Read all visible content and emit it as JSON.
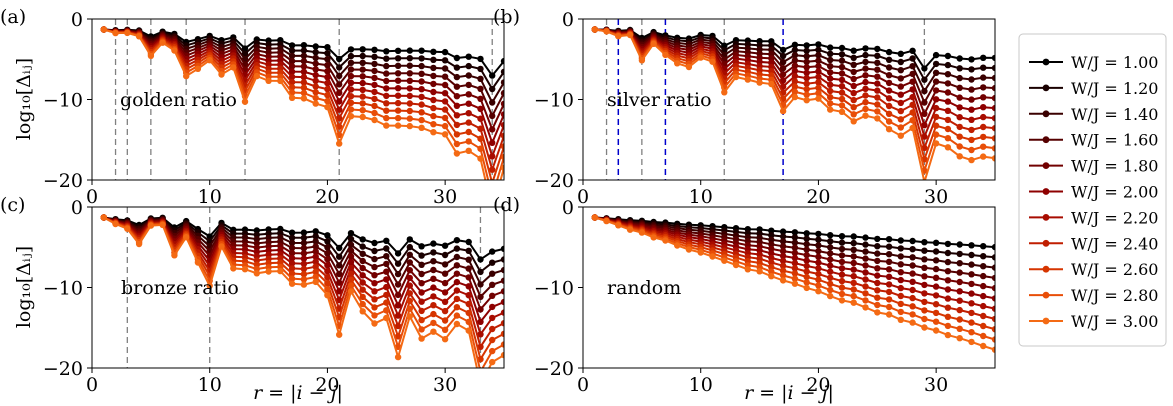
{
  "figure": {
    "xlabel": "r = |i − j|",
    "ylabel": "log₁₀[Δᵢⱼ]"
  },
  "legend": {
    "entries": [
      "W/J = 1.00",
      "W/J = 1.20",
      "W/J = 1.40",
      "W/J = 1.60",
      "W/J = 1.80",
      "W/J = 2.00",
      "W/J = 2.20",
      "W/J = 2.40",
      "W/J = 2.60",
      "W/J = 2.80",
      "W/J = 3.00"
    ],
    "placement": "right"
  },
  "chart_data": [
    {
      "type": "line",
      "panel_label": "(a)",
      "annotation": "golden ratio",
      "xlim": [
        0,
        35
      ],
      "ylim": [
        -20,
        0
      ],
      "xticks": [
        0,
        10,
        20,
        30
      ],
      "yticks": [
        0,
        -10,
        -20
      ],
      "vlines_gray": [
        2,
        3,
        5,
        8,
        13,
        21,
        34
      ],
      "vlines_blue": [],
      "dips": [
        {
          "r": 5,
          "depth": 0.6
        },
        {
          "r": 8,
          "depth": 1.2
        },
        {
          "r": 13,
          "depth": 1.8
        },
        {
          "r": 21,
          "depth": 2.6
        },
        {
          "r": 34,
          "depth": 3.2
        }
      ],
      "jitter": 0.6,
      "seed": 3
    },
    {
      "type": "line",
      "panel_label": "(b)",
      "annotation": "silver ratio",
      "xlim": [
        0,
        35
      ],
      "ylim": [
        -20,
        0
      ],
      "xticks": [
        0,
        10,
        20,
        30
      ],
      "yticks": [
        0,
        -10,
        -20
      ],
      "vlines_gray": [
        2,
        5,
        12,
        29
      ],
      "vlines_blue": [
        3,
        7,
        17
      ],
      "dips": [
        {
          "r": 5,
          "depth": 0.6
        },
        {
          "r": 12,
          "depth": 1.4
        },
        {
          "r": 17,
          "depth": 1.6
        },
        {
          "r": 29,
          "depth": 2.6
        }
      ],
      "jitter": 0.5,
      "seed": 7
    },
    {
      "type": "line",
      "panel_label": "(c)",
      "annotation": "bronze ratio",
      "xlim": [
        0,
        35
      ],
      "ylim": [
        -20,
        0
      ],
      "xticks": [
        0,
        10,
        20,
        30
      ],
      "yticks": [
        0,
        -10,
        -20
      ],
      "vlines_gray": [
        3,
        10,
        33
      ],
      "vlines_blue": [],
      "dips": [
        {
          "r": 10,
          "depth": 1.6
        },
        {
          "r": 21,
          "depth": 1.8
        },
        {
          "r": 23,
          "depth": 1.2
        },
        {
          "r": 26,
          "depth": 2.0
        },
        {
          "r": 30,
          "depth": 1.6
        },
        {
          "r": 33,
          "depth": 4.0
        }
      ],
      "jitter": 1.2,
      "seed": 11
    },
    {
      "type": "line",
      "panel_label": "(d)",
      "annotation": "random",
      "xlim": [
        0,
        35
      ],
      "ylim": [
        -20,
        0
      ],
      "xticks": [
        0,
        10,
        20,
        30
      ],
      "yticks": [
        0,
        -10,
        -20
      ],
      "vlines_gray": [],
      "vlines_blue": [],
      "dips": [],
      "jitter": 0.08,
      "seed": 17
    }
  ],
  "series_params": {
    "W_over_J": [
      1.0,
      1.2,
      1.4,
      1.6,
      1.8,
      2.0,
      2.2,
      2.4,
      2.6,
      2.8,
      3.0
    ],
    "colors": [
      "#000000",
      "#1a0000",
      "#3a0000",
      "#560000",
      "#720000",
      "#8e0000",
      "#a80c00",
      "#c01e00",
      "#d63500",
      "#e84e08",
      "#f46a14"
    ],
    "r_min": 1,
    "r_max": 35,
    "start_logdelta": -1.3,
    "end_logdelta_min": -5.0,
    "end_logdelta_max": -17.8
  },
  "colors": {
    "gray_dash": "#808080",
    "blue_dash": "#0000cc"
  }
}
